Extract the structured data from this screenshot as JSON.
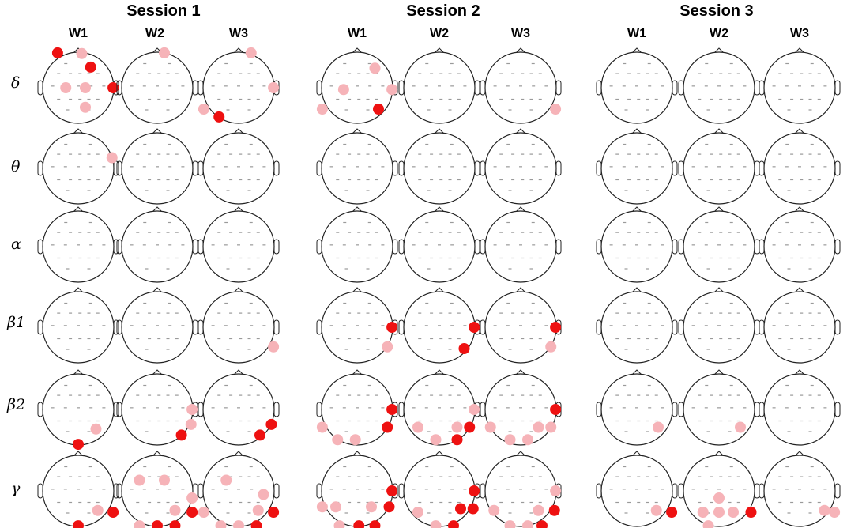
{
  "sessions": [
    {
      "title": "Session  1",
      "windows": [
        "W1",
        "W2",
        "W3"
      ]
    },
    {
      "title": "Session 2",
      "windows": [
        "W1",
        "W2",
        "W3"
      ]
    },
    {
      "title": "Session 3",
      "windows": [
        "W1",
        "W2",
        "W3"
      ]
    }
  ],
  "bands": [
    "δ",
    "θ",
    "α",
    "β1",
    "β2",
    "γ"
  ],
  "colors": {
    "strong": "#ee1111",
    "weak": "#f6b3b8",
    "outline": "#222222",
    "electrode": "#9a9a9a"
  },
  "electrode_grid": [
    [
      -0.35,
      -0.68
    ],
    [
      0.35,
      -0.68
    ],
    [
      -0.55,
      -0.4
    ],
    [
      -0.22,
      -0.4
    ],
    [
      0.05,
      -0.4
    ],
    [
      0.3,
      -0.4
    ],
    [
      0.55,
      -0.4
    ],
    [
      -0.72,
      -0.05
    ],
    [
      -0.36,
      -0.05
    ],
    [
      0.0,
      -0.05
    ],
    [
      0.36,
      -0.05
    ],
    [
      0.72,
      -0.05
    ],
    [
      -0.55,
      0.32
    ],
    [
      -0.22,
      0.32
    ],
    [
      0.05,
      0.32
    ],
    [
      0.3,
      0.32
    ],
    [
      0.55,
      0.32
    ],
    [
      -0.3,
      0.62
    ],
    [
      0.3,
      0.62
    ]
  ],
  "markers": [
    [
      [
        [
          [
            -0.58,
            -0.98,
            "s"
          ],
          [
            0.1,
            -0.96,
            "w"
          ],
          [
            0.35,
            -0.58,
            "s"
          ],
          [
            0.98,
            0.0,
            "s"
          ],
          [
            -0.35,
            0.0,
            "w"
          ],
          [
            0.2,
            0.0,
            "w"
          ],
          [
            0.2,
            0.55,
            "w"
          ]
        ],
        [
          [
            0.2,
            -0.98,
            "w"
          ]
        ],
        [
          [
            0.35,
            -0.98,
            "w"
          ],
          [
            0.98,
            0.0,
            "w"
          ],
          [
            -0.98,
            0.6,
            "w"
          ],
          [
            -0.55,
            0.82,
            "s"
          ]
        ]
      ],
      [
        [
          [
            -0.98,
            0.6,
            "w"
          ],
          [
            -0.38,
            0.05,
            "w"
          ],
          [
            0.5,
            -0.55,
            "w"
          ],
          [
            0.98,
            0.05,
            "w"
          ],
          [
            0.6,
            0.6,
            "s"
          ]
        ],
        [],
        [
          [
            0.98,
            0.6,
            "w"
          ]
        ]
      ],
      [
        [],
        [],
        []
      ]
    ],
    [
      [
        [
          [
            0.95,
            -0.3,
            "w"
          ]
        ],
        [],
        []
      ],
      [
        [],
        [],
        []
      ],
      [
        [],
        [],
        []
      ]
    ],
    [
      [
        [],
        [],
        []
      ],
      [
        [],
        [],
        []
      ],
      [
        [],
        [],
        []
      ]
    ],
    [
      [
        [],
        [],
        [
          [
            0.98,
            0.55,
            "w"
          ]
        ]
      ],
      [
        [
          [
            0.98,
            0.0,
            "s"
          ],
          [
            0.85,
            0.55,
            "w"
          ]
        ],
        [
          [
            0.98,
            0.0,
            "s"
          ],
          [
            0.7,
            0.6,
            "s"
          ]
        ],
        [
          [
            0.98,
            0.0,
            "s"
          ],
          [
            0.85,
            0.55,
            "w"
          ]
        ]
      ],
      [
        [],
        [],
        []
      ]
    ],
    [
      [
        [
          [
            0.5,
            0.55,
            "w"
          ],
          [
            0.0,
            0.98,
            "s"
          ]
        ],
        [
          [
            0.98,
            0.0,
            "w"
          ],
          [
            0.95,
            0.42,
            "w"
          ],
          [
            0.68,
            0.72,
            "s"
          ]
        ],
        [
          [
            0.92,
            0.42,
            "s"
          ],
          [
            0.6,
            0.72,
            "s"
          ]
        ]
      ],
      [
        [
          [
            0.98,
            0.0,
            "s"
          ],
          [
            0.85,
            0.5,
            "s"
          ],
          [
            -0.98,
            0.5,
            "w"
          ],
          [
            -0.55,
            0.85,
            "w"
          ],
          [
            -0.05,
            0.85,
            "w"
          ]
        ],
        [
          [
            0.98,
            0.0,
            "w"
          ],
          [
            0.85,
            0.5,
            "s"
          ],
          [
            -0.6,
            0.5,
            "w"
          ],
          [
            -0.1,
            0.85,
            "w"
          ],
          [
            0.5,
            0.5,
            "w"
          ],
          [
            0.5,
            0.85,
            "s"
          ]
        ],
        [
          [
            0.98,
            0.0,
            "s"
          ],
          [
            0.85,
            0.5,
            "w"
          ],
          [
            -0.85,
            0.5,
            "w"
          ],
          [
            0.5,
            0.5,
            "w"
          ],
          [
            -0.3,
            0.85,
            "w"
          ],
          [
            0.2,
            0.85,
            "w"
          ]
        ]
      ],
      [
        [
          [
            0.6,
            0.5,
            "w"
          ]
        ],
        [
          [
            0.6,
            0.5,
            "w"
          ]
        ],
        []
      ]
    ],
    [
      [
        [
          [
            0.55,
            0.55,
            "w"
          ],
          [
            0.98,
            0.6,
            "s"
          ],
          [
            0.0,
            0.98,
            "s"
          ]
        ],
        [
          [
            -0.5,
            -0.3,
            "w"
          ],
          [
            0.2,
            -0.3,
            "w"
          ],
          [
            0.98,
            0.2,
            "w"
          ],
          [
            0.5,
            0.55,
            "w"
          ],
          [
            0.98,
            0.6,
            "s"
          ],
          [
            -0.5,
            0.98,
            "w"
          ],
          [
            0.0,
            0.98,
            "s"
          ],
          [
            0.5,
            0.98,
            "s"
          ]
        ],
        [
          [
            -0.35,
            -0.3,
            "w"
          ],
          [
            0.7,
            0.1,
            "w"
          ],
          [
            -0.98,
            0.6,
            "w"
          ],
          [
            0.55,
            0.55,
            "w"
          ],
          [
            0.98,
            0.6,
            "s"
          ],
          [
            -0.5,
            0.98,
            "w"
          ],
          [
            0.0,
            0.98,
            "w"
          ],
          [
            0.5,
            0.98,
            "s"
          ]
        ]
      ],
      [
        [
          [
            0.98,
            0.0,
            "s"
          ],
          [
            -0.98,
            0.45,
            "w"
          ],
          [
            -0.6,
            0.45,
            "w"
          ],
          [
            0.4,
            0.45,
            "w"
          ],
          [
            0.9,
            0.45,
            "s"
          ],
          [
            -0.5,
            0.98,
            "w"
          ],
          [
            0.05,
            0.98,
            "s"
          ],
          [
            0.5,
            0.98,
            "s"
          ]
        ],
        [
          [
            0.98,
            0.0,
            "s"
          ],
          [
            0.6,
            0.5,
            "s"
          ],
          [
            0.95,
            0.5,
            "s"
          ],
          [
            -0.6,
            0.6,
            "w"
          ],
          [
            -0.1,
            0.98,
            "w"
          ],
          [
            0.4,
            0.98,
            "s"
          ]
        ],
        [
          [
            0.98,
            0.0,
            "w"
          ],
          [
            0.95,
            0.55,
            "s"
          ],
          [
            0.5,
            0.55,
            "w"
          ],
          [
            -0.75,
            0.55,
            "w"
          ],
          [
            -0.3,
            0.98,
            "w"
          ],
          [
            0.2,
            0.98,
            "w"
          ],
          [
            0.6,
            0.98,
            "s"
          ]
        ]
      ],
      [
        [
          [
            0.55,
            0.55,
            "w"
          ],
          [
            0.98,
            0.6,
            "s"
          ]
        ],
        [
          [
            0.0,
            0.2,
            "w"
          ],
          [
            -0.45,
            0.6,
            "w"
          ],
          [
            0.0,
            0.6,
            "w"
          ],
          [
            0.4,
            0.6,
            "w"
          ],
          [
            0.9,
            0.6,
            "s"
          ],
          [
            -0.3,
            0.98,
            "w"
          ]
        ],
        [
          [
            0.7,
            0.55,
            "w"
          ],
          [
            0.98,
            0.6,
            "w"
          ]
        ]
      ]
    ]
  ]
}
